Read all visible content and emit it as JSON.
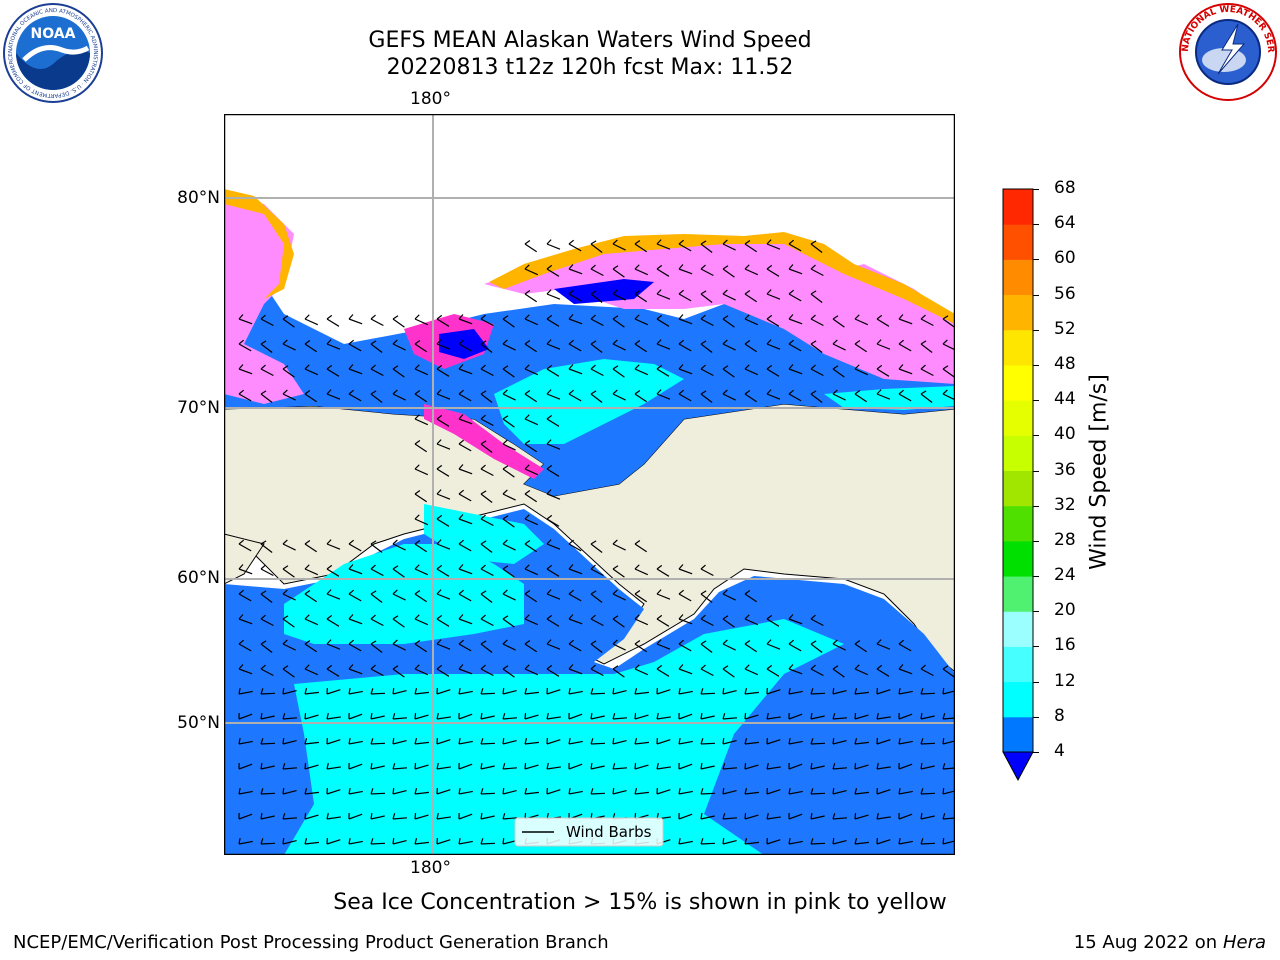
{
  "header": {
    "title_line1": "GEFS MEAN Alaskan Waters Wind Speed",
    "title_line2": "20220813 t12z 120h fcst   Max: 11.52"
  },
  "logos": {
    "left": {
      "name": "NOAA",
      "text": "NOAA",
      "ring_text": "NATIONAL OCEANIC AND ATMOSPHERIC ADMINISTRATION · U.S. DEPARTMENT OF COMMERCE"
    },
    "right": {
      "name": "National Weather Service",
      "ring_text": "NATIONAL WEATHER SERVICE"
    }
  },
  "map": {
    "lon_labels": [
      "180°",
      "180°"
    ],
    "lat_labels": [
      "80°N",
      "70°N",
      "60°N",
      "50°N"
    ],
    "legend_label": "Wind Barbs",
    "colors": {
      "land": "#efeedd",
      "ocean_low": "#1e78ff",
      "ocean_mid": "#00ffff",
      "ocean_high": "#46ffff",
      "ice": [
        "#ff33cc",
        "#ff8cff",
        "#ffb400",
        "#ffe664"
      ],
      "grid": "#b0b0b0"
    }
  },
  "colorbar": {
    "label": "Wind Speed [m/s]",
    "ticks": [
      "4",
      "8",
      "12",
      "16",
      "20",
      "24",
      "28",
      "32",
      "36",
      "40",
      "44",
      "48",
      "52",
      "56",
      "60",
      "64",
      "68"
    ],
    "under_color": "#0000ff",
    "bins": [
      "#0078ff",
      "#00ffff",
      "#46ffff",
      "#9bffff",
      "#50f070",
      "#00e000",
      "#50e000",
      "#a0e600",
      "#c8ff00",
      "#e6ff00",
      "#ffff00",
      "#ffe600",
      "#ffb400",
      "#ff8c00",
      "#ff5000",
      "#ff2800"
    ]
  },
  "caption": "Sea Ice Concentration > 15% is shown in pink to yellow",
  "footer": {
    "left": "NCEP/EMC/Verification Post Processing Product Generation Branch",
    "right_date": "15 Aug 2022 on",
    "right_host": "Hera"
  }
}
